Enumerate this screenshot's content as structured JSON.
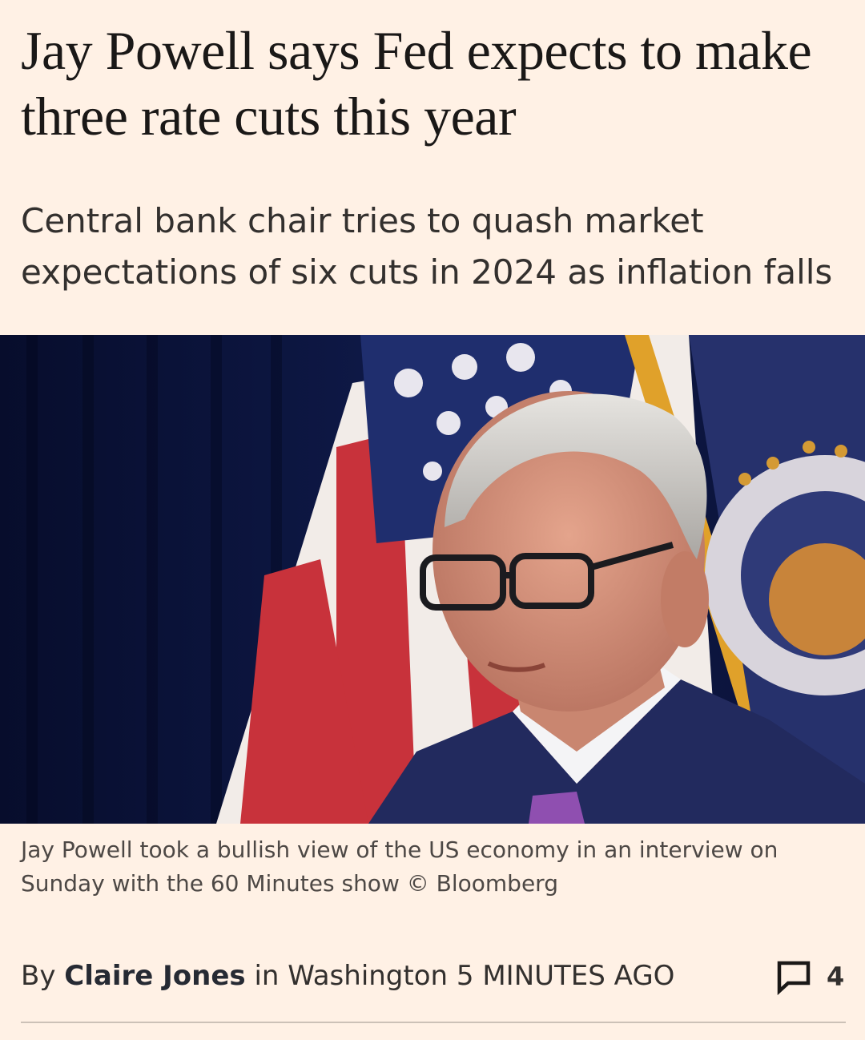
{
  "article": {
    "headline": "Jay Powell says Fed expects to make three rate cuts this year",
    "standfirst": "Central bank chair tries to quash market expectations of six cuts in 2024 as inflation falls",
    "image": {
      "caption": "Jay Powell took a bullish view of the US economy in an interview on Sunday with the 60 Minutes show © Bloomberg"
    },
    "byline": {
      "prefix": "By",
      "author": "Claire Jones",
      "location": "in Washington",
      "time": "5 MINUTES AGO"
    },
    "comments": {
      "icon": "speech-bubble-icon",
      "count": "4"
    }
  },
  "colors": {
    "background": "#fff1e5",
    "text": "#33302e",
    "rule": "#ccc1b7"
  }
}
